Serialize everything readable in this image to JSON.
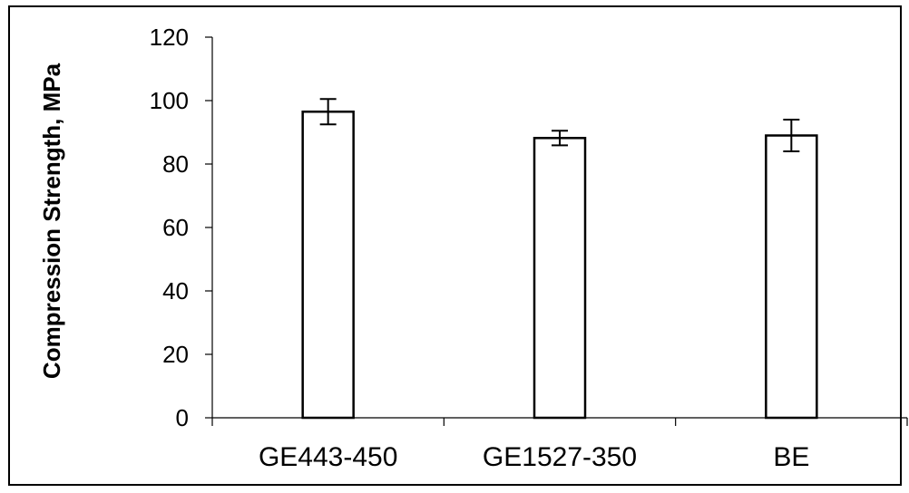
{
  "chart_data": {
    "type": "bar",
    "title": "",
    "xlabel": "",
    "ylabel": "Compression Strength, MPa",
    "ylim": [
      0,
      120
    ],
    "yticks": [
      0,
      20,
      40,
      60,
      80,
      100,
      120
    ],
    "categories": [
      "GE443-450",
      "GE1527-350",
      "BE"
    ],
    "values": [
      96.5,
      88.2,
      89.0
    ],
    "errors": [
      4.0,
      2.3,
      5.0
    ],
    "grid": false,
    "legend": "none",
    "colors": {
      "bar_fill": "#ffffff",
      "bar_stroke": "#000000",
      "axis": "#000000"
    }
  }
}
